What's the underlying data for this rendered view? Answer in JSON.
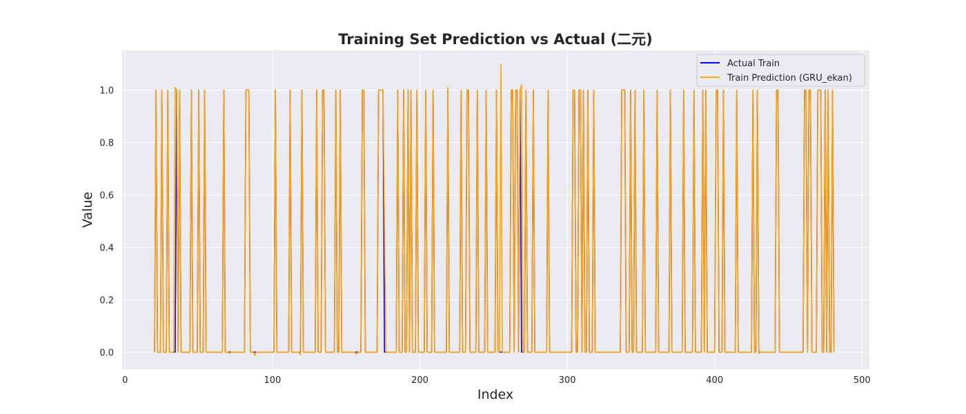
{
  "chart_data": {
    "type": "line",
    "title": "Training Set Prediction vs Actual (二元)",
    "xlabel": "Index",
    "ylabel": "Value",
    "xlim": [
      -2,
      505
    ],
    "ylim": [
      -0.065,
      1.152
    ],
    "x_ticks": [
      0,
      100,
      200,
      300,
      400,
      500
    ],
    "y_ticks": [
      0.0,
      0.2,
      0.4,
      0.6,
      0.8,
      1.0
    ],
    "x_tick_labels": [
      "0",
      "100",
      "200",
      "300",
      "400",
      "500"
    ],
    "y_tick_labels": [
      "0.0",
      "0.2",
      "0.4",
      "0.6",
      "0.8",
      "1.0"
    ],
    "grid": true,
    "legend_position": "top-right",
    "x_start": 20,
    "x_end": 481,
    "pulse_x": [
      21,
      25,
      29,
      35,
      37,
      45,
      50,
      54,
      67,
      82,
      83,
      84,
      102,
      112,
      120,
      130,
      134,
      135,
      143,
      146,
      161,
      162,
      172,
      173,
      174,
      175,
      185,
      189,
      192,
      194,
      198,
      204,
      209,
      219,
      228,
      232,
      233,
      239,
      245,
      252,
      262,
      263,
      265,
      266,
      268,
      272,
      277,
      287,
      304,
      305,
      308,
      309,
      311,
      314,
      318,
      337,
      338,
      339,
      343,
      346,
      352,
      361,
      370,
      379,
      386,
      392,
      394,
      401,
      402,
      406,
      415,
      426,
      429,
      442,
      443,
      461,
      462,
      464,
      465,
      470,
      471,
      472,
      475,
      477,
      480
    ],
    "prediction_anomalies": [
      {
        "x": 255,
        "y": 1.1
      },
      {
        "x": 175.5,
        "y": 0.74
      },
      {
        "x": 269,
        "y": 1.02
      },
      {
        "x": 34,
        "y": 1.01
      },
      {
        "x": 219,
        "y": 1.01
      }
    ],
    "series": [
      {
        "name": "Actual Train",
        "color": "#0000ff"
      },
      {
        "name": "Train Prediction (GRU_ekan)",
        "color": "#ffa500"
      }
    ],
    "style": {
      "plot_background": "#eaeaf2",
      "grid_color": "#ffffff",
      "text_color": "#262626"
    }
  }
}
